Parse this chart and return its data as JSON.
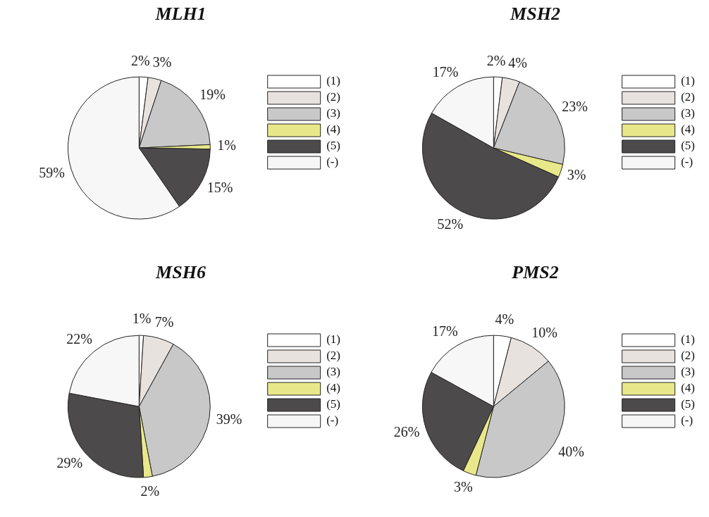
{
  "chart_data": [
    {
      "type": "pie",
      "title": "MLH1",
      "categories": [
        "(1)",
        "(2)",
        "(3)",
        "(4)",
        "(5)",
        "(-)"
      ],
      "values": [
        2,
        3,
        19,
        1,
        15,
        59
      ],
      "value_labels": [
        "2%",
        "3%",
        "19%",
        "1%",
        "15%",
        "59%"
      ],
      "colors": [
        "#ffffff",
        "#e8e2df",
        "#c8c8c8",
        "#e8e88a",
        "#4d4a4b",
        "#f7f7f7"
      ],
      "legend": "right"
    },
    {
      "type": "pie",
      "title": "MSH2",
      "categories": [
        "(1)",
        "(2)",
        "(3)",
        "(4)",
        "(5)",
        "(-)"
      ],
      "values": [
        2,
        4,
        23,
        3,
        52,
        17
      ],
      "value_labels": [
        "2%",
        "4%",
        "23%",
        "3%",
        "52%",
        "17%"
      ],
      "colors": [
        "#ffffff",
        "#e8e2df",
        "#c8c8c8",
        "#e8e88a",
        "#4d4a4b",
        "#f7f7f7"
      ],
      "legend": "right"
    },
    {
      "type": "pie",
      "title": "MSH6",
      "categories": [
        "(1)",
        "(2)",
        "(3)",
        "(4)",
        "(5)",
        "(-)"
      ],
      "values": [
        1,
        7,
        39,
        2,
        29,
        22
      ],
      "value_labels": [
        "1%",
        "7%",
        "39%",
        "2%",
        "29%",
        "22%"
      ],
      "colors": [
        "#ffffff",
        "#e8e2df",
        "#c8c8c8",
        "#e8e88a",
        "#4d4a4b",
        "#f7f7f7"
      ],
      "legend": "right"
    },
    {
      "type": "pie",
      "title": "PMS2",
      "categories": [
        "(1)",
        "(2)",
        "(3)",
        "(4)",
        "(5)",
        "(-)"
      ],
      "values": [
        4,
        10,
        40,
        3,
        26,
        17
      ],
      "value_labels": [
        "4%",
        "10%",
        "40%",
        "3%",
        "26%",
        "17%"
      ],
      "colors": [
        "#ffffff",
        "#e8e2df",
        "#c8c8c8",
        "#e8e88a",
        "#4d4a4b",
        "#f7f7f7"
      ],
      "legend": "right"
    }
  ]
}
